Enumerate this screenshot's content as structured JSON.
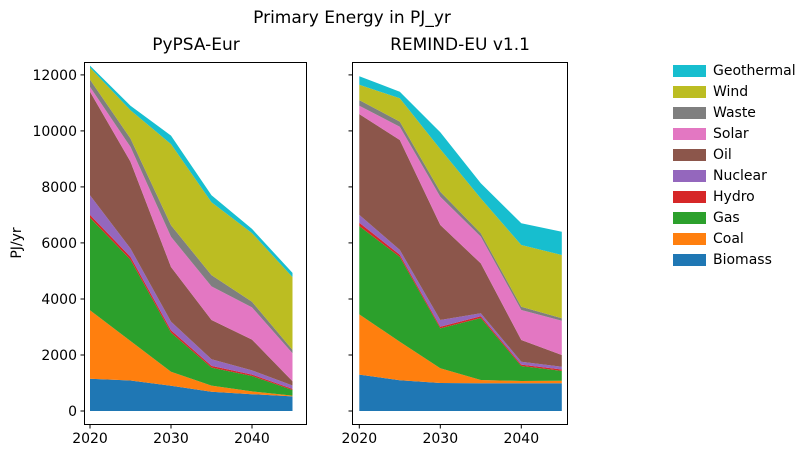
{
  "figure": {
    "title": "Primary Energy in PJ_yr",
    "ylabel": "PJ/yr"
  },
  "chart_data": [
    {
      "type": "area",
      "stacked": true,
      "title": "PyPSA-Eur",
      "xlabel": "",
      "ylabel": "PJ/yr",
      "x": [
        2020,
        2025,
        2030,
        2035,
        2040,
        2045
      ],
      "xticks": [
        2020,
        2030,
        2040
      ],
      "yticks": [
        0,
        2000,
        4000,
        6000,
        8000,
        10000,
        12000
      ],
      "xlim": [
        2019.3,
        2046.8
      ],
      "ylim": [
        -500,
        12460
      ],
      "grid": false,
      "ytick_labels_visible": true,
      "series": [
        {
          "name": "Biomass",
          "color": "#1f77b4",
          "values": [
            1150,
            1090,
            900,
            690,
            600,
            520
          ]
        },
        {
          "name": "Coal",
          "color": "#ff7f0e",
          "values": [
            2450,
            1410,
            500,
            215,
            100,
            30
          ]
        },
        {
          "name": "Gas",
          "color": "#2ca02c",
          "values": [
            3300,
            2900,
            1400,
            645,
            550,
            200
          ]
        },
        {
          "name": "Hydro",
          "color": "#d62728",
          "values": [
            100,
            100,
            80,
            60,
            50,
            40
          ]
        },
        {
          "name": "Nuclear",
          "color": "#9467bd",
          "values": [
            700,
            300,
            310,
            240,
            150,
            120
          ]
        },
        {
          "name": "Oil",
          "color": "#8c564b",
          "values": [
            3700,
            3100,
            1950,
            1400,
            1100,
            150
          ]
        },
        {
          "name": "Solar",
          "color": "#e377c2",
          "values": [
            170,
            530,
            1080,
            1200,
            1150,
            1000
          ]
        },
        {
          "name": "Waste",
          "color": "#7f7f7f",
          "values": [
            260,
            300,
            410,
            400,
            200,
            120
          ]
        },
        {
          "name": "Wind",
          "color": "#bcbd22",
          "values": [
            430,
            1010,
            2900,
            2600,
            2450,
            2600
          ]
        },
        {
          "name": "Geothermal",
          "color": "#17becf",
          "values": [
            70,
            160,
            300,
            250,
            150,
            150
          ]
        }
      ]
    },
    {
      "type": "area",
      "stacked": true,
      "title": "REMIND-EU v1.1",
      "xlabel": "",
      "ylabel": "PJ/yr",
      "x": [
        2020,
        2025,
        2030,
        2035,
        2040,
        2045
      ],
      "xticks": [
        2020,
        2030,
        2040
      ],
      "yticks": [
        0,
        2000,
        4000,
        6000,
        8000,
        10000,
        12000
      ],
      "xlim": [
        2019.1,
        2046.7
      ],
      "ylim": [
        -500,
        12460
      ],
      "grid": false,
      "ytick_labels_visible": false,
      "series": [
        {
          "name": "Biomass",
          "color": "#1f77b4",
          "values": [
            1300,
            1100,
            1000,
            990,
            990,
            990
          ]
        },
        {
          "name": "Coal",
          "color": "#ff7f0e",
          "values": [
            2150,
            1375,
            525,
            115,
            80,
            90
          ]
        },
        {
          "name": "Gas",
          "color": "#2ca02c",
          "values": [
            3150,
            3025,
            1425,
            2215,
            535,
            350
          ]
        },
        {
          "name": "Hydro",
          "color": "#d62728",
          "values": [
            120,
            80,
            60,
            60,
            50,
            50
          ]
        },
        {
          "name": "Nuclear",
          "color": "#9467bd",
          "values": [
            280,
            170,
            240,
            110,
            105,
            100
          ]
        },
        {
          "name": "Oil",
          "color": "#8c564b",
          "values": [
            3600,
            3925,
            3390,
            1780,
            775,
            420
          ]
        },
        {
          "name": "Solar",
          "color": "#e377c2",
          "values": [
            300,
            475,
            1010,
            955,
            1070,
            1225
          ]
        },
        {
          "name": "Waste",
          "color": "#7f7f7f",
          "values": [
            200,
            180,
            180,
            120,
            120,
            85
          ]
        },
        {
          "name": "Wind",
          "color": "#bcbd22",
          "values": [
            550,
            835,
            1520,
            1245,
            2200,
            2260
          ]
        },
        {
          "name": "Geothermal",
          "color": "#17becf",
          "values": [
            300,
            235,
            600,
            540,
            775,
            830
          ]
        }
      ]
    }
  ],
  "legend": {
    "position": "right",
    "entries": [
      {
        "label": "Geothermal",
        "color": "#17becf"
      },
      {
        "label": "Wind",
        "color": "#bcbd22"
      },
      {
        "label": "Waste",
        "color": "#7f7f7f"
      },
      {
        "label": "Solar",
        "color": "#e377c2"
      },
      {
        "label": "Oil",
        "color": "#8c564b"
      },
      {
        "label": "Nuclear",
        "color": "#9467bd"
      },
      {
        "label": "Hydro",
        "color": "#d62728"
      },
      {
        "label": "Gas",
        "color": "#2ca02c"
      },
      {
        "label": "Coal",
        "color": "#ff7f0e"
      },
      {
        "label": "Biomass",
        "color": "#1f77b4"
      }
    ]
  }
}
